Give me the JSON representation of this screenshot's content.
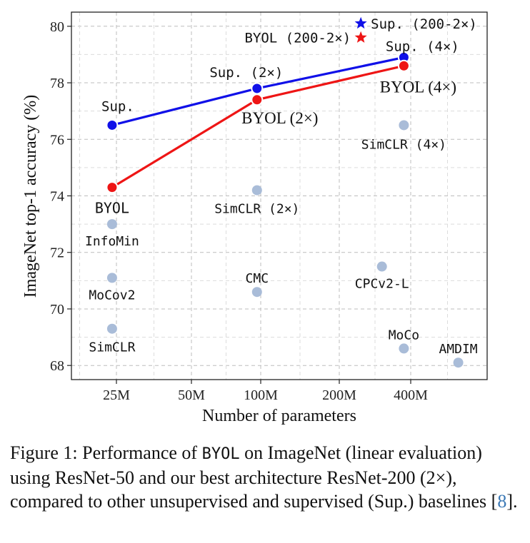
{
  "chart_data": {
    "type": "scatter",
    "xlabel": "Number of parameters",
    "ylabel": "ImageNet top-1 accuracy (%)",
    "x_scale": "log",
    "x_ticks": [
      "25M",
      "50M",
      "100M",
      "200M",
      "400M"
    ],
    "y_ticks": [
      "68",
      "70",
      "72",
      "74",
      "76",
      "78",
      "80"
    ],
    "ylim": [
      67.5,
      80.5
    ],
    "grid": true,
    "series": [
      {
        "name": "Sup.",
        "color": "#1010e8",
        "line": true,
        "points": [
          {
            "x": "24M",
            "y": 76.5,
            "label": "Sup."
          },
          {
            "x": "94M",
            "y": 77.8,
            "label": "Sup. (2×)"
          },
          {
            "x": "375M",
            "y": 78.9,
            "label": "Sup. (4×)"
          }
        ]
      },
      {
        "name": "BYOL",
        "color": "#ee1515",
        "line": true,
        "points": [
          {
            "x": "24M",
            "y": 74.3,
            "label": "BYOL"
          },
          {
            "x": "94M",
            "y": 77.4,
            "label": "BYOL (2×)"
          },
          {
            "x": "375M",
            "y": 78.6,
            "label": "BYOL (4×)"
          }
        ]
      },
      {
        "name": "baselines",
        "color": "#a9bcd8",
        "line": false,
        "points": [
          {
            "x": "24M",
            "y": 73.0,
            "label": "InfoMin"
          },
          {
            "x": "24M",
            "y": 71.1,
            "label": "MoCov2"
          },
          {
            "x": "24M",
            "y": 69.3,
            "label": "SimCLR"
          },
          {
            "x": "94M",
            "y": 74.2,
            "label": "SimCLR (2×)"
          },
          {
            "x": "94M",
            "y": 70.6,
            "label": "CMC"
          },
          {
            "x": "375M",
            "y": 76.5,
            "label": "SimCLR (4×)"
          },
          {
            "x": "305M",
            "y": 71.5,
            "label": "CPCv2-L"
          },
          {
            "x": "375M",
            "y": 68.6,
            "label": "MoCo"
          },
          {
            "x": "626M",
            "y": 68.1,
            "label": "AMDIM"
          }
        ]
      },
      {
        "name": "ResNet-200 (2×)",
        "line": false,
        "marker": "star",
        "points": [
          {
            "x": "250M",
            "y": 80.1,
            "label": "Sup. (200-2×)",
            "color": "#1010e8"
          },
          {
            "x": "250M",
            "y": 79.6,
            "label": "BYOL (200-2×)",
            "color": "#ee1515"
          }
        ]
      }
    ]
  },
  "caption": {
    "prefix": "Figure 1: Performance of ",
    "code": "BYOL",
    "text": " on ImageNet (linear evaluation) using ResNet-50 and our best architecture ResNet-200 (2×), compared to other unsupervised and supervised (Sup.) baselines [",
    "cite": "8",
    "suffix": "]."
  }
}
